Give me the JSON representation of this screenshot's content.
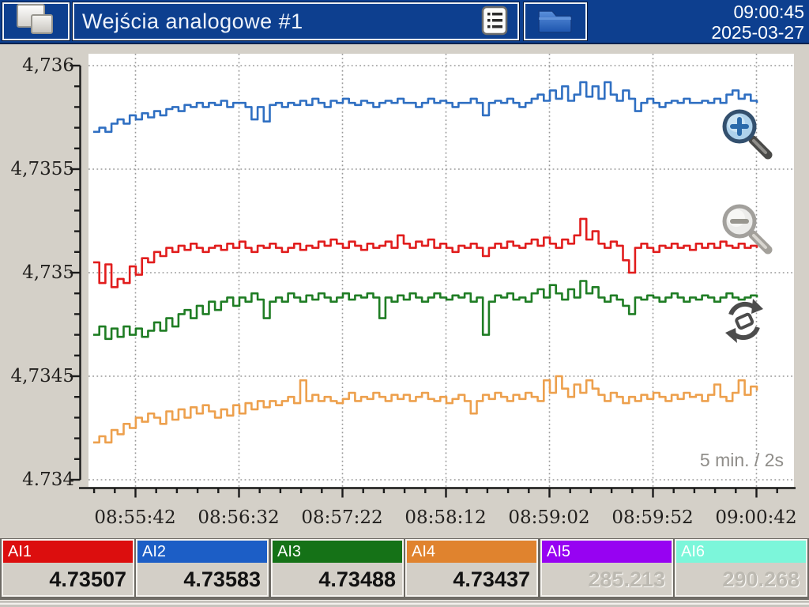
{
  "header": {
    "title": "Wejścia analogowe #1",
    "time": "09:00:45",
    "date": "2025-03-27",
    "icons": {
      "app": "pages-icon",
      "menu": "list-icon",
      "files": "folder-icon"
    }
  },
  "chart": {
    "y_labels": [
      "4,736",
      "4,7355",
      "4,735",
      "4,7345",
      "4.734"
    ],
    "x_labels": [
      "08:55:42",
      "08:56:32",
      "08:57:22",
      "08:58:12",
      "08:59:02",
      "08:59:52",
      "09:00:42"
    ],
    "range_label": "5 min. / 2s",
    "icons": {
      "zoom_in": "zoom-in-icon",
      "zoom_out": "zoom-out-icon",
      "rotate": "rotate-icon"
    },
    "colors": {
      "plot_bg": "#ffffff",
      "panel_bg": "#d4d0c8",
      "grid": "#999999",
      "axis": "#1a1a1a",
      "range_text": "#8f8d89"
    }
  },
  "chart_data": {
    "type": "line",
    "title": "",
    "xlabel": "",
    "ylabel": "",
    "y_min": 4.734,
    "y_max": 4.736,
    "x_ticks": [
      "08:55:42",
      "08:56:32",
      "08:57:22",
      "08:58:12",
      "08:59:02",
      "08:59:52",
      "09:00:42"
    ],
    "time_window": "5 min.",
    "sample_interval": "2s",
    "grid": true,
    "legend_position": "bottom-tiles",
    "series": [
      {
        "name": "AI1",
        "color": "#e11d1d",
        "values": [
          4.73505,
          4.73495,
          4.73504,
          4.73493,
          4.73497,
          4.73495,
          4.73503,
          4.73499,
          4.73507,
          4.73505,
          4.7351,
          4.73508,
          4.73512,
          4.7351,
          4.73513,
          4.73511,
          4.73514,
          4.73512,
          4.7351,
          4.73512,
          4.73513,
          4.73511,
          4.73514,
          4.73512,
          4.73515,
          4.73512,
          4.7351,
          4.73513,
          4.73512,
          4.73514,
          4.73512,
          4.7351,
          4.73512,
          4.73514,
          4.73511,
          4.73513,
          4.73512,
          4.73515,
          4.73513,
          4.73516,
          4.73514,
          4.73512,
          4.73515,
          4.73513,
          4.73511,
          4.73514,
          4.73512,
          4.73513,
          4.73515,
          4.73512,
          4.73518,
          4.73514,
          4.73512,
          4.73515,
          4.73513,
          4.73516,
          4.73512,
          4.73514,
          4.73512,
          4.7351,
          4.73513,
          4.73512,
          4.73514,
          4.73512,
          4.73508,
          4.73512,
          4.73514,
          4.73512,
          4.73515,
          4.73513,
          4.73512,
          4.73514,
          4.73516,
          4.73513,
          4.73517,
          4.73514,
          4.73512,
          4.73516,
          4.73514,
          4.73518,
          4.73526,
          4.73516,
          4.7352,
          4.73514,
          4.73512,
          4.73515,
          4.73513,
          4.73506,
          4.735,
          4.73512,
          4.73514,
          4.73512,
          4.7351,
          4.73513,
          4.73512,
          4.73514,
          4.73512,
          4.73513,
          4.73511,
          4.73514,
          4.73512,
          4.73514,
          4.73512,
          4.73515,
          4.73513,
          4.73512,
          4.73514,
          4.73512,
          4.73513,
          4.73512
        ]
      },
      {
        "name": "AI2",
        "color": "#2f6fc2",
        "values": [
          4.73568,
          4.7357,
          4.73568,
          4.73572,
          4.73574,
          4.73572,
          4.73576,
          4.73574,
          4.73577,
          4.73575,
          4.73578,
          4.73576,
          4.73579,
          4.7358,
          4.73578,
          4.73581,
          4.7358,
          4.73582,
          4.7358,
          4.73582,
          4.73581,
          4.73583,
          4.7358,
          4.73582,
          4.73582,
          4.7358,
          4.73574,
          4.7358,
          4.73573,
          4.73581,
          4.73582,
          4.7358,
          4.73582,
          4.73581,
          4.73583,
          4.73581,
          4.73584,
          4.73582,
          4.7358,
          4.73583,
          4.73582,
          4.73584,
          4.73582,
          4.73581,
          4.73583,
          4.73582,
          4.7358,
          4.73582,
          4.73583,
          4.73582,
          4.73584,
          4.73582,
          4.73582,
          4.7358,
          4.73582,
          4.73584,
          4.73582,
          4.73583,
          4.73582,
          4.7358,
          4.73582,
          4.73582,
          4.73584,
          4.73582,
          4.73576,
          4.73582,
          4.73583,
          4.73582,
          4.73584,
          4.73582,
          4.7358,
          4.73582,
          4.73584,
          4.73586,
          4.73583,
          4.73588,
          4.73584,
          4.7359,
          4.73583,
          4.73586,
          4.73592,
          4.73585,
          4.7359,
          4.73584,
          4.73592,
          4.73586,
          4.73583,
          4.73588,
          4.73584,
          4.73578,
          4.73582,
          4.73584,
          4.73582,
          4.7358,
          4.73582,
          4.73583,
          4.73582,
          4.73584,
          4.73582,
          4.73582,
          4.73583,
          4.73582,
          4.73584,
          4.73582,
          4.73586,
          4.73588,
          4.73584,
          4.73586,
          4.73583,
          4.73582
        ]
      },
      {
        "name": "AI3",
        "color": "#1f7d24",
        "values": [
          4.7347,
          4.73474,
          4.73468,
          4.73473,
          4.73469,
          4.73474,
          4.7347,
          4.73473,
          4.73469,
          4.73472,
          4.73476,
          4.73472,
          4.73478,
          4.73474,
          4.7348,
          4.73482,
          4.73478,
          4.73484,
          4.7348,
          4.73486,
          4.73482,
          4.73486,
          4.73488,
          4.73484,
          4.73488,
          4.73486,
          4.7349,
          4.73487,
          4.73478,
          4.73486,
          4.73488,
          4.73486,
          4.7349,
          4.73488,
          4.73486,
          4.73489,
          4.73487,
          4.7349,
          4.73488,
          4.73486,
          4.73488,
          4.7349,
          4.73487,
          4.73489,
          4.73488,
          4.7349,
          4.73488,
          4.73478,
          4.73488,
          4.73486,
          4.73489,
          4.73487,
          4.7349,
          4.73488,
          4.73486,
          4.73488,
          4.7349,
          4.73488,
          4.73487,
          4.73489,
          4.73488,
          4.7349,
          4.73486,
          4.73488,
          4.7347,
          4.73486,
          4.73489,
          4.73488,
          4.7349,
          4.73487,
          4.73488,
          4.73486,
          4.7349,
          4.73492,
          4.73488,
          4.73494,
          4.7349,
          4.73487,
          4.73492,
          4.73488,
          4.73496,
          4.7349,
          4.73493,
          4.73488,
          4.73486,
          4.73489,
          4.73487,
          4.73484,
          4.7348,
          4.73488,
          4.73487,
          4.73489,
          4.73488,
          4.73486,
          4.73488,
          4.7349,
          4.73488,
          4.73486,
          4.73488,
          4.73487,
          4.73489,
          4.73488,
          4.73486,
          4.73488,
          4.7349,
          4.73488,
          4.73487,
          4.73488,
          4.73489,
          4.73488
        ]
      },
      {
        "name": "AI4",
        "color": "#eda04d",
        "values": [
          4.73418,
          4.73421,
          4.73418,
          4.73424,
          4.73422,
          4.73427,
          4.73425,
          4.7343,
          4.73428,
          4.73432,
          4.7343,
          4.73427,
          4.73433,
          4.73429,
          4.73434,
          4.7343,
          4.73435,
          4.73432,
          4.73436,
          4.73433,
          4.7343,
          4.73434,
          4.73431,
          4.73436,
          4.73432,
          4.73437,
          4.73434,
          4.73438,
          4.73435,
          4.73438,
          4.73436,
          4.73438,
          4.7344,
          4.73437,
          4.73448,
          4.73438,
          4.73441,
          4.73438,
          4.7344,
          4.73438,
          4.73437,
          4.73439,
          4.73442,
          4.73438,
          4.7344,
          4.73439,
          4.73442,
          4.7344,
          4.73438,
          4.73441,
          4.73439,
          4.73441,
          4.73438,
          4.7344,
          4.73442,
          4.73439,
          4.73438,
          4.7344,
          4.73437,
          4.73439,
          4.73441,
          4.73438,
          4.73432,
          4.73438,
          4.73441,
          4.73439,
          4.73442,
          4.7344,
          4.73438,
          4.73441,
          4.73439,
          4.73442,
          4.7344,
          4.73438,
          4.73448,
          4.73442,
          4.7345,
          4.73444,
          4.7344,
          4.73446,
          4.73442,
          4.73448,
          4.73444,
          4.73441,
          4.73438,
          4.73442,
          4.7344,
          4.73437,
          4.7344,
          4.73438,
          4.73441,
          4.73439,
          4.73442,
          4.7344,
          4.73438,
          4.73441,
          4.73439,
          4.73442,
          4.7344,
          4.73441,
          4.73438,
          4.73441,
          4.73446,
          4.7344,
          4.73438,
          4.73442,
          4.73448,
          4.73441,
          4.73445,
          4.73443
        ]
      }
    ]
  },
  "channels": [
    {
      "label": "AI1",
      "value": "4.73507",
      "color": "#dc0e0e",
      "enabled": true
    },
    {
      "label": "AI2",
      "value": "4.73583",
      "color": "#1c5ec6",
      "enabled": true
    },
    {
      "label": "AI3",
      "value": "4.73488",
      "color": "#157217",
      "enabled": true
    },
    {
      "label": "AI4",
      "value": "4.73437",
      "color": "#e0832e",
      "enabled": true
    },
    {
      "label": "AI5",
      "value": "285.213",
      "color": "#9702f2",
      "enabled": false
    },
    {
      "label": "AI6",
      "value": "290.268",
      "color": "#7cf6da",
      "enabled": false
    }
  ]
}
